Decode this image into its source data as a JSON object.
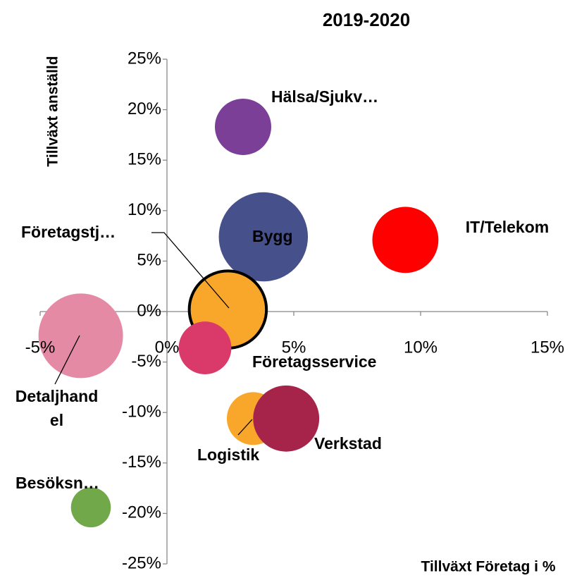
{
  "chart_data": {
    "type": "bubble",
    "title": "2019-2020",
    "x_label": "Tillväxt Företag i %",
    "y_label": "Tillväxt anställd",
    "xlim": [
      -5,
      15
    ],
    "ylim": [
      -25,
      25
    ],
    "xticks": [
      {
        "value": -5,
        "label": "-5%"
      },
      {
        "value": 0,
        "label": "0%"
      },
      {
        "value": 5,
        "label": "5%"
      },
      {
        "value": 10,
        "label": "10%"
      },
      {
        "value": 15,
        "label": "15%"
      }
    ],
    "yticks": [
      {
        "value": -25,
        "label": "-25%"
      },
      {
        "value": -20,
        "label": "-20%"
      },
      {
        "value": -15,
        "label": "-15%"
      },
      {
        "value": -10,
        "label": "-10%"
      },
      {
        "value": -5,
        "label": "-5%"
      },
      {
        "value": 0,
        "label": "0%"
      },
      {
        "value": 5,
        "label": "5%"
      },
      {
        "value": 10,
        "label": "10%"
      },
      {
        "value": 15,
        "label": "15%"
      },
      {
        "value": 20,
        "label": "20%"
      },
      {
        "value": 25,
        "label": "25%"
      }
    ],
    "series": [
      {
        "name": "Hälsa/Sjukv…",
        "color": "#7b3f97",
        "x": [
          3.0
        ],
        "values": [
          18.3
        ],
        "sizes": [
          16
        ]
      },
      {
        "name": "Bygg",
        "color": "#46508a",
        "x": [
          3.8
        ],
        "values": [
          7.4
        ],
        "sizes": [
          40
        ]
      },
      {
        "name": "IT/Telekom",
        "color": "#ff0000",
        "x": [
          9.4
        ],
        "values": [
          7.1
        ],
        "sizes": [
          22
        ]
      },
      {
        "name": "Detaljhandel",
        "color": "#e58aa5",
        "x": [
          -3.4
        ],
        "values": [
          -2.4
        ],
        "sizes": [
          36
        ]
      },
      {
        "name": "Företagstj…",
        "color": "#f9a72b",
        "edgecolor": "#000000",
        "x": [
          2.4
        ],
        "values": [
          0.2
        ],
        "sizes": [
          30
        ]
      },
      {
        "name": "Företagsservice",
        "color": "#d93a6a",
        "x": [
          1.5
        ],
        "values": [
          -3.6
        ],
        "sizes": [
          14
        ]
      },
      {
        "name": "Logistik",
        "color": "#f9a72b",
        "x": [
          3.4
        ],
        "values": [
          -10.6
        ],
        "sizes": [
          14
        ]
      },
      {
        "name": "Verkstad",
        "color": "#a62349",
        "x": [
          4.7
        ],
        "values": [
          -10.6
        ],
        "sizes": [
          22
        ]
      },
      {
        "name": "Besöksn…",
        "color": "#70a84a",
        "x": [
          -3.0
        ],
        "values": [
          -19.4
        ],
        "sizes": [
          8
        ]
      }
    ]
  }
}
